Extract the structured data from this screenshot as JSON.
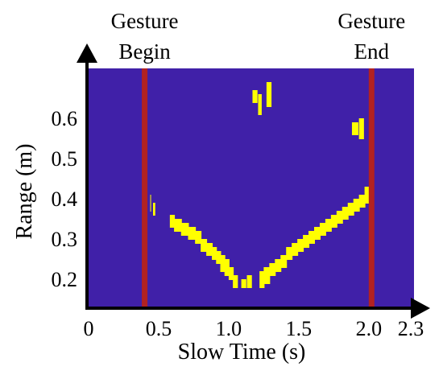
{
  "chart_data": {
    "type": "heatmap",
    "xlabel": "Slow Time (s)",
    "ylabel": "Range (m)",
    "xlim": [
      0,
      2.3
    ],
    "ylim": [
      0.12,
      0.72
    ],
    "x_ticks": [
      {
        "value": 0,
        "label": "0"
      },
      {
        "value": 0.5,
        "label": "0.5"
      },
      {
        "value": 1.0,
        "label": "1.0"
      },
      {
        "value": 1.5,
        "label": "1.5"
      },
      {
        "value": 2.0,
        "label": "2.0"
      },
      {
        "value": 2.3,
        "label": "2.3"
      }
    ],
    "y_ticks": [
      {
        "value": 0.2,
        "label": "0.2"
      },
      {
        "value": 0.3,
        "label": "0.3"
      },
      {
        "value": 0.4,
        "label": "0.4"
      },
      {
        "value": 0.5,
        "label": "0.5"
      },
      {
        "value": 0.6,
        "label": "0.6"
      }
    ],
    "grid": false,
    "background_color": "#4020A8",
    "highlight_color": "#FFFF00",
    "marker_line_color": "#B22222",
    "markers": [
      {
        "x": 0.4,
        "label_line1": "Gesture",
        "label_line2": "Begin"
      },
      {
        "x": 2.02,
        "label_line1": "Gesture",
        "label_line2": "End"
      }
    ],
    "highlight_cells": [
      [
        0.44,
        0.41,
        0.44,
        0.37
      ],
      [
        0.46,
        0.39,
        0.47,
        0.36
      ],
      [
        0.58,
        0.36,
        0.61,
        0.33
      ],
      [
        0.61,
        0.35,
        0.66,
        0.32
      ],
      [
        0.66,
        0.34,
        0.71,
        0.31
      ],
      [
        0.71,
        0.33,
        0.76,
        0.3
      ],
      [
        0.76,
        0.32,
        0.8,
        0.29
      ],
      [
        0.8,
        0.3,
        0.84,
        0.27
      ],
      [
        0.84,
        0.29,
        0.88,
        0.26
      ],
      [
        0.88,
        0.28,
        0.91,
        0.25
      ],
      [
        0.91,
        0.27,
        0.94,
        0.24
      ],
      [
        0.94,
        0.26,
        0.97,
        0.22
      ],
      [
        0.97,
        0.25,
        1.0,
        0.21
      ],
      [
        1.0,
        0.23,
        1.03,
        0.2
      ],
      [
        1.03,
        0.21,
        1.06,
        0.18
      ],
      [
        1.09,
        0.2,
        1.12,
        0.18
      ],
      [
        1.13,
        0.21,
        1.16,
        0.18
      ],
      [
        1.22,
        0.22,
        1.25,
        0.18
      ],
      [
        1.25,
        0.23,
        1.29,
        0.19
      ],
      [
        1.29,
        0.24,
        1.33,
        0.21
      ],
      [
        1.33,
        0.25,
        1.37,
        0.22
      ],
      [
        1.37,
        0.26,
        1.41,
        0.23
      ],
      [
        1.41,
        0.28,
        1.45,
        0.25
      ],
      [
        1.45,
        0.29,
        1.49,
        0.26
      ],
      [
        1.49,
        0.3,
        1.53,
        0.27
      ],
      [
        1.53,
        0.31,
        1.57,
        0.28
      ],
      [
        1.57,
        0.32,
        1.61,
        0.29
      ],
      [
        1.61,
        0.33,
        1.65,
        0.3
      ],
      [
        1.65,
        0.34,
        1.69,
        0.31
      ],
      [
        1.69,
        0.35,
        1.73,
        0.32
      ],
      [
        1.73,
        0.36,
        1.77,
        0.33
      ],
      [
        1.77,
        0.37,
        1.81,
        0.34
      ],
      [
        1.81,
        0.38,
        1.85,
        0.35
      ],
      [
        1.85,
        0.39,
        1.89,
        0.36
      ],
      [
        1.89,
        0.4,
        1.93,
        0.37
      ],
      [
        1.93,
        0.41,
        1.97,
        0.38
      ],
      [
        1.97,
        0.43,
        2.0,
        0.39
      ],
      [
        1.17,
        0.67,
        1.2,
        0.64
      ],
      [
        1.21,
        0.66,
        1.23,
        0.61
      ],
      [
        1.27,
        0.69,
        1.3,
        0.63
      ],
      [
        1.88,
        0.59,
        1.92,
        0.56
      ],
      [
        1.93,
        0.6,
        1.96,
        0.55
      ]
    ]
  }
}
